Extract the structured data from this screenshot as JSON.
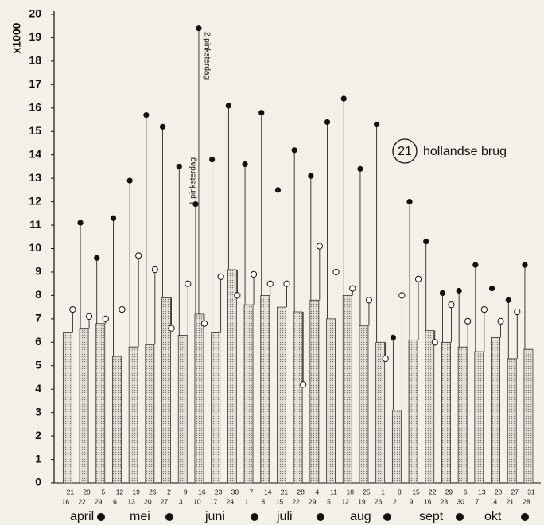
{
  "chart_data": {
    "type": "bar",
    "ylabel": "x1000",
    "label_number": "21",
    "label_text": "hollandse brug",
    "categories": [
      "21",
      "28",
      "5",
      "12",
      "19",
      "26",
      "2",
      "9",
      "16",
      "23",
      "30",
      "7",
      "14",
      "21",
      "28",
      "4",
      "11",
      "18",
      "25",
      "1",
      "8",
      "15",
      "22",
      "29",
      "6",
      "13",
      "20",
      "27",
      "31"
    ],
    "sub_categories": [
      "16",
      "22",
      "29",
      "6",
      "13",
      "20",
      "27",
      "3",
      "10",
      "17",
      "24",
      "1",
      "8",
      "15",
      "22",
      "29",
      "5",
      "12",
      "19",
      "26",
      "2",
      "9",
      "16",
      "23",
      "30",
      "7",
      "14",
      "21",
      "28"
    ],
    "months": [
      "april",
      "mei",
      "juni",
      "juli",
      "aug",
      "sept",
      "okt"
    ],
    "ylim": [
      0,
      20
    ],
    "yticks": [
      0,
      1,
      2,
      3,
      4,
      5,
      6,
      7,
      8,
      9,
      10,
      11,
      12,
      13,
      14,
      15,
      16,
      17,
      18,
      19,
      20
    ],
    "series": [
      {
        "color": "#d8d4cb",
        "values": [
          6.4,
          6.6,
          6.8,
          5.4,
          5.8,
          5.9,
          7.9,
          6.3,
          7.2,
          6.4,
          9.1,
          7.6,
          8.0,
          7.5,
          7.3,
          7.8,
          7.0,
          8.0,
          6.7,
          6.0,
          3.1,
          6.1,
          6.5,
          6.0,
          5.8,
          5.6,
          6.2,
          5.3,
          5.7
        ]
      },
      {
        "color": "#ffffff",
        "values": [
          7.4,
          7.1,
          7.0,
          7.4,
          9.7,
          9.1,
          6.6,
          8.5,
          6.8,
          8.8,
          8.0,
          8.9,
          8.5,
          8.5,
          4.2,
          10.1,
          9.0,
          8.3,
          7.8,
          5.3,
          8.0,
          8.7,
          6.0,
          7.6,
          6.9,
          7.4,
          6.9,
          7.3,
          null
        ]
      },
      {
        "color": "#111111",
        "values": [
          null,
          11.1,
          9.6,
          11.3,
          12.9,
          15.7,
          15.2,
          13.5,
          11.9,
          13.8,
          16.1,
          13.6,
          15.8,
          12.5,
          14.2,
          13.1,
          15.4,
          16.4,
          13.4,
          15.3,
          6.2,
          12.0,
          10.3,
          8.1,
          8.2,
          9.3,
          8.3,
          7.8,
          9.3
        ]
      }
    ],
    "annotations": [
      {
        "text": "1 pinksterdag"
      },
      {
        "text": "2 pinksterdag",
        "value": 19.4
      }
    ]
  }
}
